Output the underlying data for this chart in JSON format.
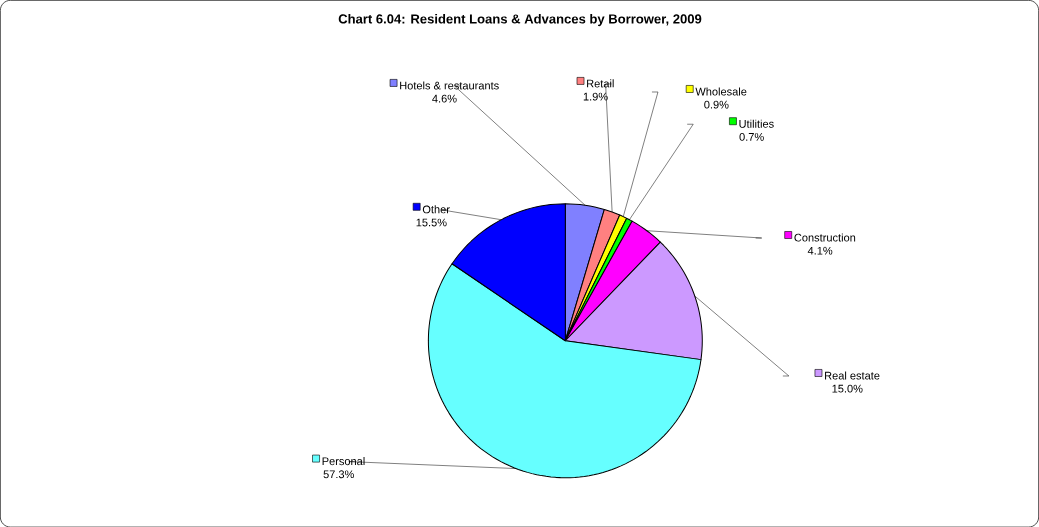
{
  "chart_data": {
    "type": "pie",
    "title": "Chart 6.04: Resident Loans & Advances by Borrower, 2009",
    "categories": [
      "Hotels & restaurants",
      "Retail",
      "Wholesale",
      "Utilities",
      "Construction",
      "Real estate",
      "Personal",
      "Other"
    ],
    "values": [
      4.6,
      1.9,
      0.9,
      0.7,
      4.1,
      15.0,
      57.3,
      15.5
    ],
    "value_labels": [
      "4.6%",
      "1.9%",
      "0.9%",
      "0.7%",
      "4.1%",
      "15.0%",
      "57.3%",
      "15.5%"
    ],
    "colors": [
      "#8080ff",
      "#ff8080",
      "#ffff00",
      "#00ff00",
      "#ff00ff",
      "#cc99ff",
      "#66ffff",
      "#0000ff"
    ],
    "legend": "right"
  }
}
